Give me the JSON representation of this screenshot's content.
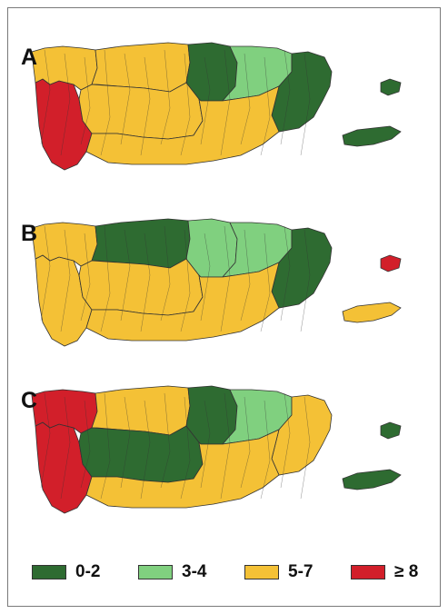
{
  "colors": {
    "dark_green": "#2e6b31",
    "light_green": "#80d07f",
    "yellow": "#f4c136",
    "red": "#d21f2a",
    "border": "#333333"
  },
  "panels": [
    {
      "label": "A",
      "regions": {
        "west": "red",
        "west_north": "yellow",
        "north_central": "yellow",
        "center": "yellow",
        "northeast_inner": "dark_green",
        "northeast_outer": "light_green",
        "east_coast": "dark_green",
        "south": "yellow",
        "vieques": "dark_green",
        "culebra": "dark_green"
      }
    },
    {
      "label": "B",
      "regions": {
        "west": "yellow",
        "west_north": "yellow",
        "north_central": "dark_green",
        "center": "yellow",
        "northeast_inner": "light_green",
        "northeast_outer": "light_green",
        "east_coast": "dark_green",
        "south": "yellow",
        "vieques": "yellow",
        "culebra": "red"
      }
    },
    {
      "label": "C",
      "regions": {
        "west": "red",
        "west_north": "red",
        "north_central": "yellow",
        "center": "dark_green",
        "northeast_inner": "dark_green",
        "northeast_outer": "light_green",
        "east_coast": "yellow",
        "south": "yellow",
        "vieques": "dark_green",
        "culebra": "dark_green"
      }
    }
  ],
  "legend": [
    {
      "label": "0-2",
      "color": "dark_green"
    },
    {
      "label": "3-4",
      "color": "light_green"
    },
    {
      "label": "5-7",
      "color": "yellow"
    },
    {
      "label": "≥ 8",
      "color": "red"
    }
  ]
}
